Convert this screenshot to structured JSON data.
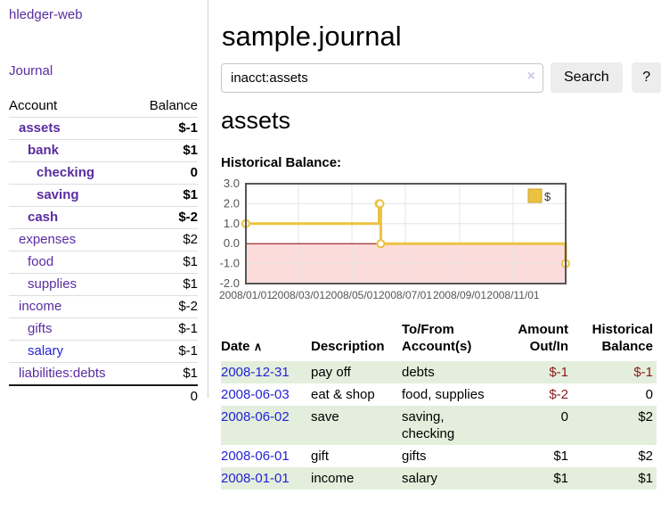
{
  "app_title": "hledger-web",
  "sidebar": {
    "journal_link": "Journal",
    "table": {
      "account_header": "Account",
      "balance_header": "Balance",
      "rows": [
        {
          "name": "assets",
          "balance": "$-1",
          "depth": 1,
          "in_view": true,
          "negative": "strong"
        },
        {
          "name": "bank",
          "balance": "$1",
          "depth": 2,
          "in_view": true
        },
        {
          "name": "checking",
          "balance": "0",
          "depth": 3,
          "in_view": true
        },
        {
          "name": "saving",
          "balance": "$1",
          "depth": 3,
          "in_view": true
        },
        {
          "name": "cash",
          "balance": "$-2",
          "depth": 2,
          "in_view": true,
          "negative": "strong"
        },
        {
          "name": "expenses",
          "balance": "$2",
          "depth": 1
        },
        {
          "name": "food",
          "balance": "$1",
          "depth": 2
        },
        {
          "name": "supplies",
          "balance": "$1",
          "depth": 2
        },
        {
          "name": "income",
          "balance": "$-2",
          "depth": 1,
          "negative": "muted"
        },
        {
          "name": "gifts",
          "balance": "$-1",
          "depth": 2,
          "negative": "muted"
        },
        {
          "name": "salary",
          "balance": "$-1",
          "depth": 2,
          "negative": "muted",
          "link_color": "blue"
        },
        {
          "name": "liabilities:debts",
          "balance": "$1",
          "depth": 1
        }
      ],
      "total": "0"
    }
  },
  "main": {
    "title": "sample.journal",
    "search": {
      "value": "inacct:assets",
      "clear_icon": "×",
      "search_button": "Search",
      "help_button": "?"
    },
    "account_heading": "assets",
    "section_label": "Historical Balance:"
  },
  "register": {
    "headers": {
      "date": "Date",
      "sort_indicator": "∧",
      "description": "Description",
      "accounts": "To/From Account(s)",
      "amount": "Amount Out/In",
      "balance": "Historical Balance"
    },
    "rows": [
      {
        "date": "2008-12-31",
        "description": "pay off",
        "accounts": "debts",
        "amount": "$-1",
        "balance": "$-1",
        "shaded": true
      },
      {
        "date": "2008-06-03",
        "description": "eat & shop",
        "accounts": "food, supplies",
        "amount": "$-2",
        "balance": "0"
      },
      {
        "date": "2008-06-02",
        "description": "save",
        "accounts": "saving,\nchecking",
        "amount": "0",
        "balance": "$2",
        "shaded": true
      },
      {
        "date": "2008-06-01",
        "description": "gift",
        "accounts": "gifts",
        "amount": "$1",
        "balance": "$2"
      },
      {
        "date": "2008-01-01",
        "description": "income",
        "accounts": "salary",
        "amount": "$1",
        "balance": "$1",
        "shaded": true
      }
    ]
  },
  "chart_data": {
    "type": "line",
    "step": true,
    "title": "Historical Balance:",
    "series": [
      {
        "name": "$",
        "points": [
          [
            "2008-01-01",
            1
          ],
          [
            "2008-06-01",
            2
          ],
          [
            "2008-06-02",
            2
          ],
          [
            "2008-06-03",
            0
          ],
          [
            "2008-12-31",
            -1
          ]
        ]
      }
    ],
    "xlim": [
      "2008-01-01",
      "2008-12-31"
    ],
    "ylim": [
      -2,
      3
    ],
    "y_ticks": [
      {
        "v": 3,
        "label": "3.0"
      },
      {
        "v": 2,
        "label": "2.0"
      },
      {
        "v": 1,
        "label": "1.0"
      },
      {
        "v": 0,
        "label": "0.0"
      },
      {
        "v": -1,
        "label": "-1.0"
      },
      {
        "v": -2,
        "label": "-2.0"
      }
    ],
    "x_ticks": [
      {
        "date": "2008-01-01",
        "label": "2008/01/01"
      },
      {
        "date": "2008-03-01",
        "label": "2008/03/01"
      },
      {
        "date": "2008-05-01",
        "label": "2008/05/01"
      },
      {
        "date": "2008-07-01",
        "label": "2008/07/01"
      },
      {
        "date": "2008-09-01",
        "label": "2008/09/01"
      },
      {
        "date": "2008-11-01",
        "label": "2008/11/01"
      }
    ],
    "legend": {
      "label": "$",
      "position": "top-right"
    },
    "grid": true,
    "colors": {
      "series": "#EDC240",
      "legend_border": "#c9a22e",
      "point_fill": "#ffffff",
      "negative_region": "#fcdbdb",
      "zero_line": "#8b0000",
      "grid": "#e4e4e4",
      "border": "#555555",
      "tick_text": "#555555"
    }
  }
}
